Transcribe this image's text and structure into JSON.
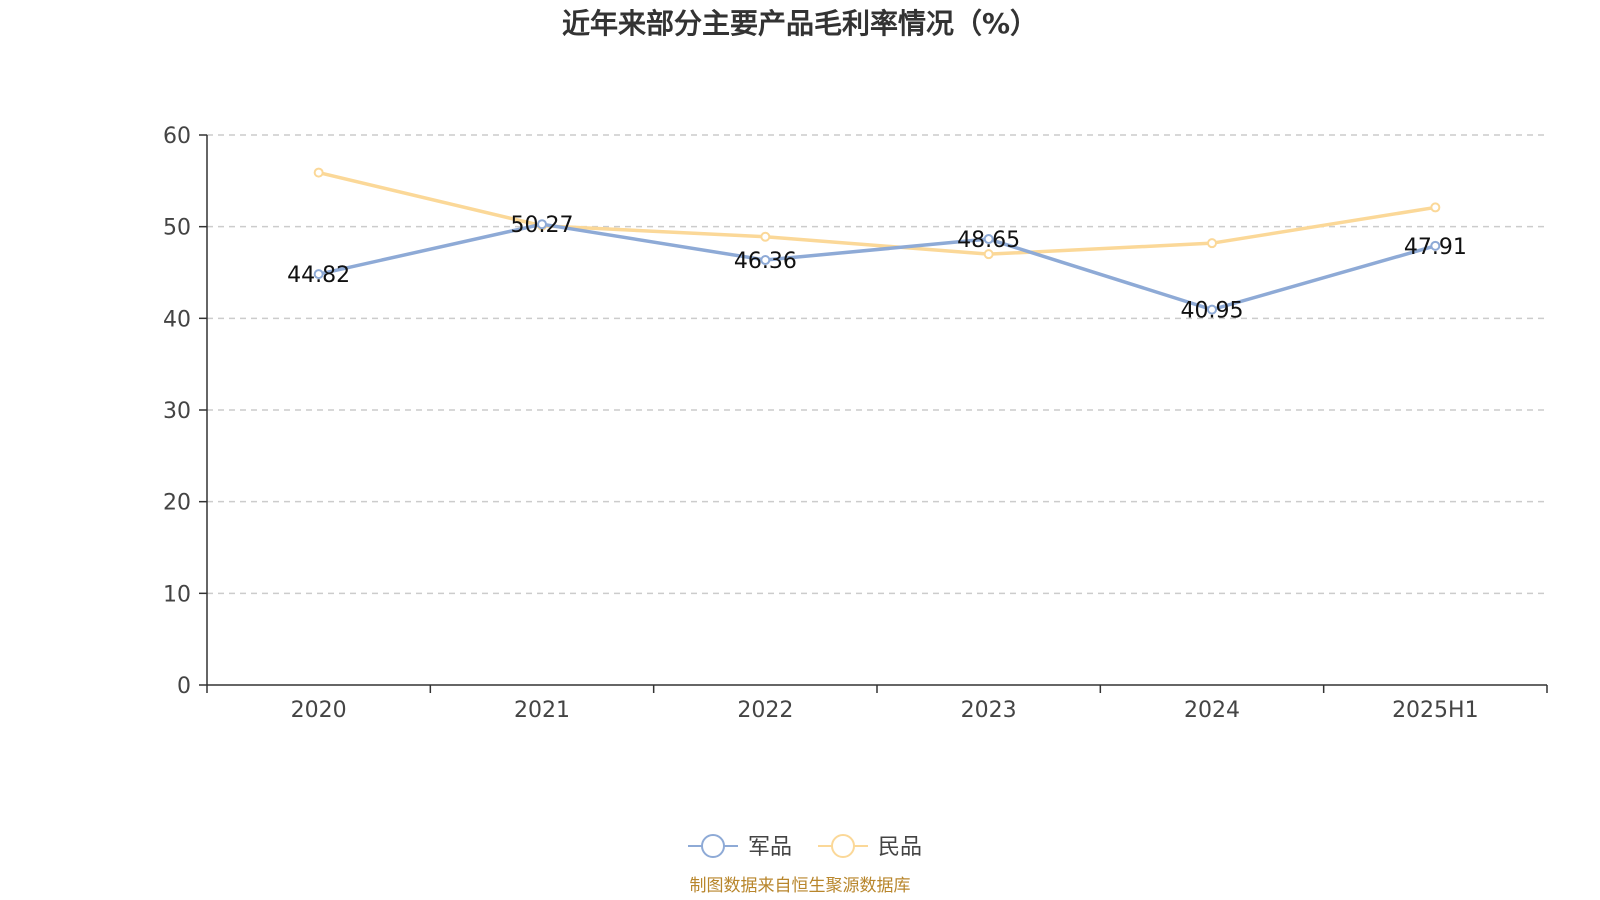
{
  "chart_data": {
    "type": "line",
    "title": "近年来部分主要产品毛利率情况（%）",
    "categories": [
      "2020",
      "2021",
      "2022",
      "2023",
      "2024",
      "2025H1"
    ],
    "ylim": [
      0,
      60
    ],
    "yticks": [
      "0",
      "10",
      "20",
      "30",
      "40",
      "50",
      "60"
    ],
    "grid": true,
    "legend_position": "bottom-center",
    "series": [
      {
        "name": "军品",
        "color": "#8eaad6",
        "values": [
          44.82,
          50.27,
          46.36,
          48.65,
          40.95,
          47.91
        ],
        "labels": [
          "44.82",
          "50.27",
          "46.36",
          "48.65",
          "40.95",
          "47.91"
        ]
      },
      {
        "name": "民品",
        "color": "#fbd898",
        "values": [
          55.9,
          50.1,
          48.9,
          47.0,
          48.2,
          52.1
        ]
      }
    ],
    "source": "制图数据来自恒生聚源数据库"
  }
}
